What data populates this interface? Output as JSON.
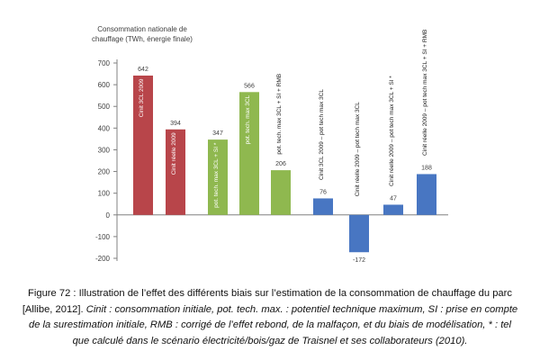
{
  "chart_data": {
    "type": "bar",
    "ylabel_line1": "Consommation nationale de",
    "ylabel_line2": "chauffage (TWh, énergie finale)",
    "ylim": [
      -200,
      700
    ],
    "yticks": [
      -200,
      -100,
      0,
      100,
      200,
      300,
      400,
      500,
      600,
      700
    ],
    "grid": false,
    "categories": [
      "Cinit 3CL 2009",
      "Cinit réelle 2009",
      "pot. tech. max 3CL + SI *",
      "pot. tech. max 3CL",
      "pot. tech. max 3CL + SI + RMB",
      "Cinit 3CL 2009 – pot tech max 3CL",
      "Cinit réelle 2009 – pot tech max 3CL",
      "Cinit réelle 2009 – pot tech max 3CL + SI *",
      "Cinit réelle 2009 – pot tech max 3CL + SI + RMB"
    ],
    "values": [
      642,
      394,
      347,
      566,
      206,
      76,
      -172,
      47,
      188
    ],
    "colors": [
      "#b8454a",
      "#b8454a",
      "#8fb84f",
      "#8fb84f",
      "#8fb84f",
      "#4876c2",
      "#4876c2",
      "#4876c2",
      "#4876c2"
    ]
  },
  "caption": {
    "line1": "Figure 72 : Illustration de l’effet des différents biais sur l’estimation de la consommation de chauffage du parc",
    "line2_normal": "[Allibe, 2012]. ",
    "line2_italic": "Cinit : consommation initiale, pot. tech. max. : potentiel technique maximum, SI : prise en compte",
    "line3": "de la surestimation initiale, RMB : corrigé de l’effet rebond, de la malfaçon, et du biais de modélisation, * : tel",
    "line4": "que calculé dans le scénario électricité/bois/gaz de Traisnel et ses collaborateurs (2010)."
  }
}
